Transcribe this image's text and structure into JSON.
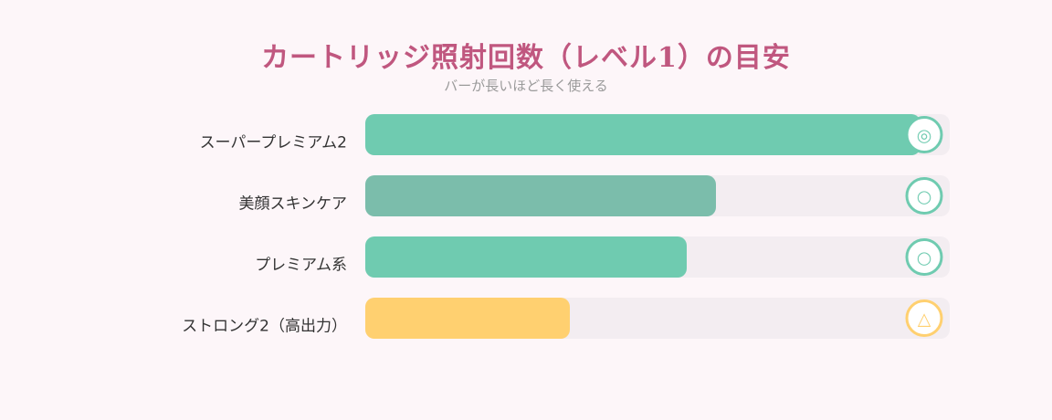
{
  "title": "カートリッジ照射回数（レベル1）の目安",
  "subtitle": "バーが長いほど長く使える",
  "colors": {
    "title": "#c0577f",
    "label": "#333333",
    "track": "#f3edf1",
    "background": "#fdf6f9"
  },
  "chart_data": {
    "type": "bar",
    "orientation": "horizontal",
    "xlim": [
      0,
      100
    ],
    "categories": [
      "スーパープレミアム2",
      "美顔スキンケア",
      "プレミアム系",
      "ストロング2（高出力）"
    ],
    "values": [
      95,
      60,
      55,
      35
    ],
    "markers": [
      "◎",
      "○",
      "○",
      "△"
    ],
    "bar_colors": [
      "#6fcbb0",
      "#7bbdab",
      "#6fcbb0",
      "#ffd070"
    ],
    "marker_colors": [
      "#6fcbb0",
      "#6fcbb0",
      "#6fcbb0",
      "#ffd070"
    ],
    "axes_visible": false,
    "grid": false,
    "legend": "none"
  }
}
